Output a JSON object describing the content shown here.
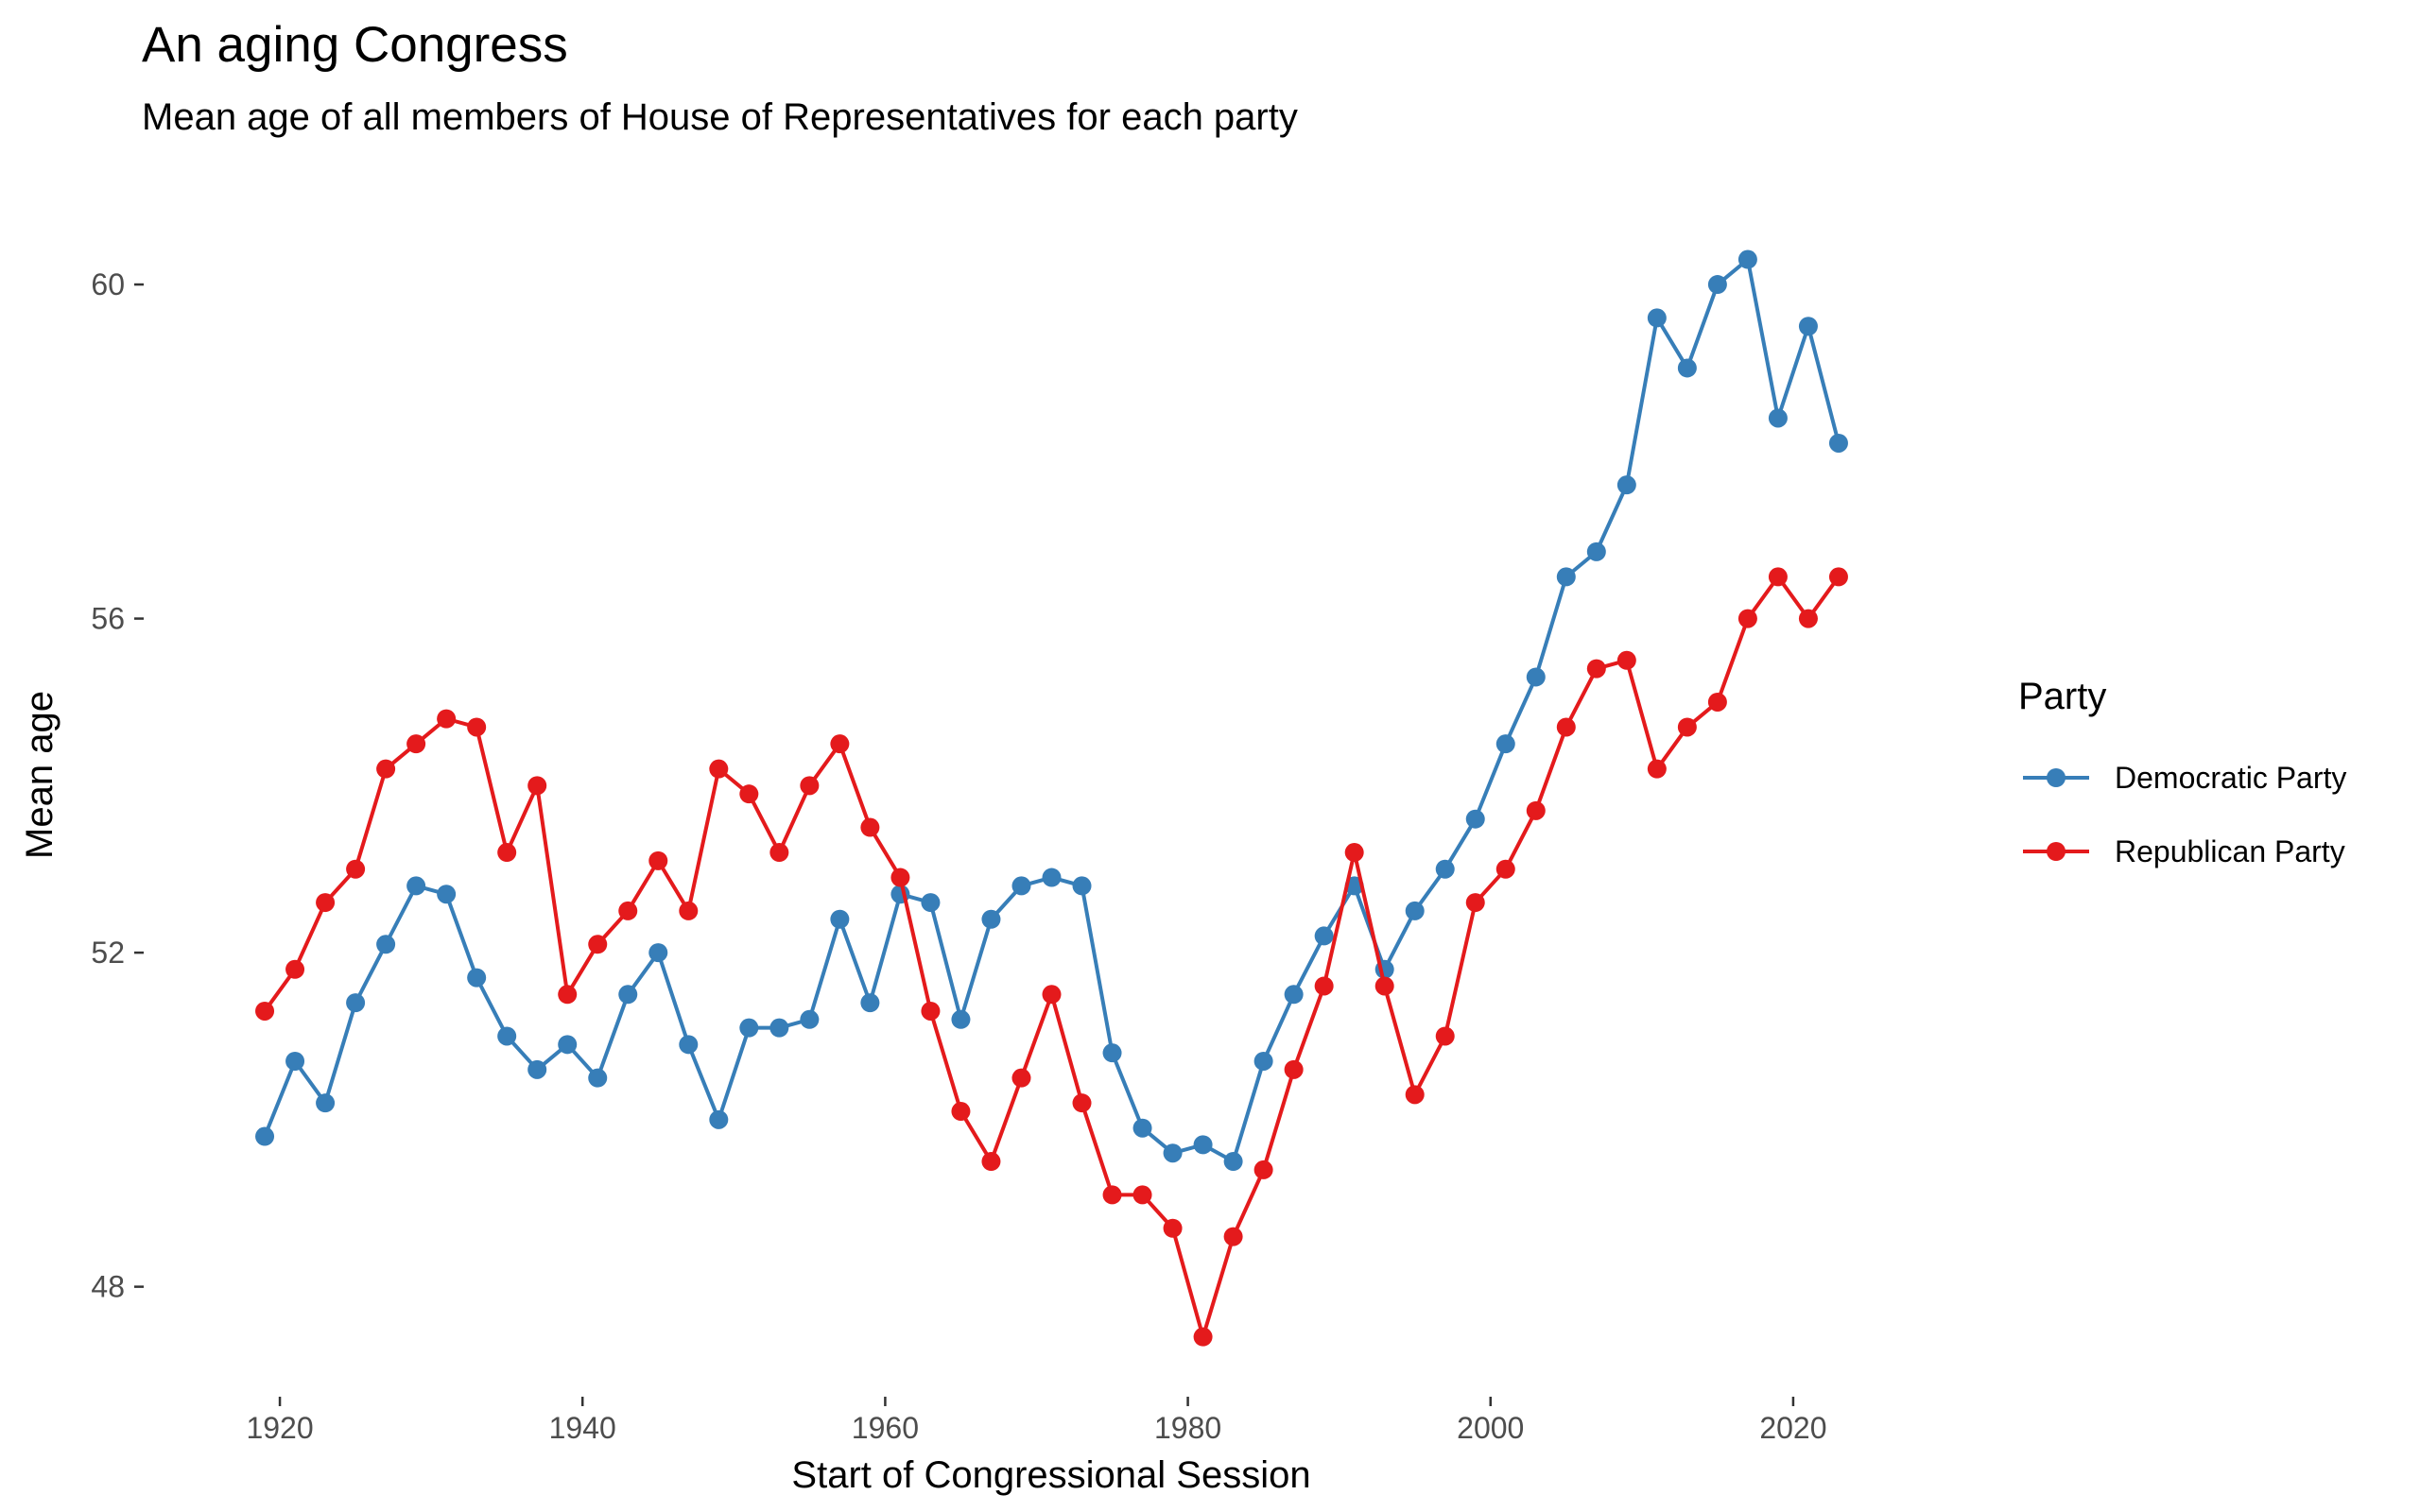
{
  "chart_data": {
    "type": "line",
    "title": "An aging Congress",
    "subtitle": "Mean age of all members of House of Representatives for each party",
    "xlabel": "Start of Congressional Session",
    "ylabel": "Mean age",
    "xlim": [
      1914,
      2028
    ],
    "ylim": [
      47,
      61.2
    ],
    "xticks": [
      1920,
      1940,
      1960,
      1980,
      2000,
      2020
    ],
    "yticks": [
      48,
      52,
      56,
      60
    ],
    "grid": false,
    "legend": {
      "title": "Party",
      "position": "right"
    },
    "x": [
      1919,
      1921,
      1923,
      1925,
      1927,
      1929,
      1931,
      1933,
      1935,
      1937,
      1939,
      1941,
      1943,
      1945,
      1947,
      1949,
      1951,
      1953,
      1955,
      1957,
      1959,
      1961,
      1963,
      1965,
      1967,
      1969,
      1971,
      1973,
      1975,
      1977,
      1979,
      1981,
      1983,
      1985,
      1987,
      1989,
      1991,
      1993,
      1995,
      1997,
      1999,
      2001,
      2003,
      2005,
      2007,
      2009,
      2011,
      2013,
      2015,
      2017,
      2019,
      2021,
      2023
    ],
    "series": [
      {
        "name": "Democratic Party",
        "color": "#377eb8",
        "values": [
          49.8,
          50.7,
          50.2,
          51.4,
          52.1,
          52.8,
          52.7,
          51.7,
          51.0,
          50.6,
          50.9,
          50.5,
          51.5,
          52.0,
          50.9,
          50.0,
          51.1,
          51.1,
          51.2,
          52.4,
          51.4,
          52.7,
          52.6,
          51.2,
          52.4,
          52.8,
          52.9,
          52.8,
          50.8,
          49.9,
          49.6,
          49.7,
          49.5,
          50.7,
          51.5,
          52.2,
          52.8,
          51.8,
          52.5,
          53.0,
          53.6,
          54.5,
          55.3,
          56.5,
          56.8,
          57.6,
          59.6,
          59.0,
          60.0,
          60.3,
          58.4,
          59.5,
          58.1
        ]
      },
      {
        "name": "Republican Party",
        "color": "#e41a1c",
        "values": [
          51.3,
          51.8,
          52.6,
          53.0,
          54.2,
          54.5,
          54.8,
          54.7,
          53.2,
          54.0,
          51.5,
          52.1,
          52.5,
          53.1,
          52.5,
          54.2,
          53.9,
          53.2,
          54.0,
          54.5,
          53.5,
          52.9,
          51.3,
          50.1,
          49.5,
          50.5,
          51.5,
          50.2,
          49.1,
          49.1,
          48.7,
          47.4,
          48.6,
          49.4,
          50.6,
          51.6,
          53.2,
          51.6,
          50.3,
          51.0,
          52.6,
          53.0,
          53.7,
          54.7,
          55.4,
          55.5,
          54.2,
          54.7,
          55.0,
          56.0,
          56.5,
          56.0,
          56.5
        ]
      }
    ]
  }
}
